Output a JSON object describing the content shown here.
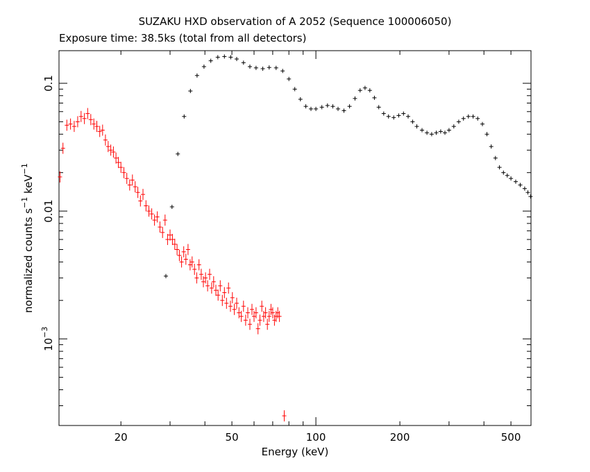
{
  "chart_data": {
    "type": "scatter",
    "title": "SUZAKU HXD observation of A 2052 (Sequence 100006050)",
    "subtitle": "Exposure time: 38.5ks (total from all detectors)",
    "xlabel": "Energy (keV)",
    "ylabel": {
      "main": "normalized counts s",
      "exp1": "−1",
      "mid": " keV",
      "exp2": "−1"
    },
    "x_scale": "log",
    "y_scale": "log",
    "xlim": [
      12,
      590
    ],
    "ylim": [
      0.00021,
      0.18
    ],
    "grid": false,
    "x_tick_labels": [
      {
        "value": 20,
        "label": "20"
      },
      {
        "value": 50,
        "label": "50"
      },
      {
        "value": 100,
        "label": "100"
      },
      {
        "value": 200,
        "label": "200"
      },
      {
        "value": 500,
        "label": "500"
      }
    ],
    "y_tick_labels": [
      {
        "value": 0.001,
        "label": "10",
        "exp": "−3"
      },
      {
        "value": 0.01,
        "label": "0.01"
      },
      {
        "value": 0.1,
        "label": "0.1"
      }
    ],
    "series": [
      {
        "color": "#ff0000",
        "points": [
          [
            12.1,
            0.0185
          ],
          [
            12.4,
            0.031
          ],
          [
            12.8,
            0.047
          ],
          [
            13.2,
            0.048
          ],
          [
            13.6,
            0.046
          ],
          [
            14.0,
            0.05
          ],
          [
            14.4,
            0.055
          ],
          [
            14.8,
            0.053
          ],
          [
            15.2,
            0.058
          ],
          [
            15.6,
            0.052
          ],
          [
            16.0,
            0.048
          ],
          [
            16.4,
            0.046
          ],
          [
            16.8,
            0.042
          ],
          [
            17.2,
            0.043
          ],
          [
            17.6,
            0.036
          ],
          [
            18.0,
            0.032
          ],
          [
            18.4,
            0.03
          ],
          [
            18.8,
            0.029
          ],
          [
            19.2,
            0.026
          ],
          [
            19.6,
            0.024
          ],
          [
            20.0,
            0.022
          ],
          [
            20.5,
            0.02
          ],
          [
            21.0,
            0.018
          ],
          [
            21.5,
            0.016
          ],
          [
            22.0,
            0.0175
          ],
          [
            22.5,
            0.0155
          ],
          [
            23.0,
            0.014
          ],
          [
            23.5,
            0.012
          ],
          [
            24.0,
            0.0135
          ],
          [
            24.6,
            0.011
          ],
          [
            25.2,
            0.01
          ],
          [
            25.8,
            0.0095
          ],
          [
            26.4,
            0.0085
          ],
          [
            27.0,
            0.009
          ],
          [
            27.6,
            0.0075
          ],
          [
            28.2,
            0.0068
          ],
          [
            28.8,
            0.0085
          ],
          [
            29.4,
            0.006
          ],
          [
            30.0,
            0.0065
          ],
          [
            30.6,
            0.006
          ],
          [
            31.2,
            0.0055
          ],
          [
            31.8,
            0.005
          ],
          [
            32.4,
            0.0045
          ],
          [
            33.0,
            0.004
          ],
          [
            33.6,
            0.0048
          ],
          [
            34.2,
            0.0042
          ],
          [
            34.8,
            0.005
          ],
          [
            35.4,
            0.0038
          ],
          [
            36.0,
            0.004
          ],
          [
            36.7,
            0.0035
          ],
          [
            37.4,
            0.003
          ],
          [
            38.1,
            0.0038
          ],
          [
            38.8,
            0.0032
          ],
          [
            39.5,
            0.0028
          ],
          [
            40.2,
            0.003
          ],
          [
            40.9,
            0.0026
          ],
          [
            41.6,
            0.0032
          ],
          [
            42.3,
            0.0025
          ],
          [
            43.0,
            0.0028
          ],
          [
            43.8,
            0.0024
          ],
          [
            44.6,
            0.0022
          ],
          [
            45.4,
            0.0026
          ],
          [
            46.2,
            0.002
          ],
          [
            47.0,
            0.0023
          ],
          [
            47.8,
            0.0019
          ],
          [
            48.6,
            0.0025
          ],
          [
            49.4,
            0.0018
          ],
          [
            50.2,
            0.0021
          ],
          [
            51.0,
            0.0017
          ],
          [
            52.0,
            0.0019
          ],
          [
            53.0,
            0.0016
          ],
          [
            54.0,
            0.0015
          ],
          [
            55.0,
            0.0018
          ],
          [
            56.0,
            0.0014
          ],
          [
            57.0,
            0.0016
          ],
          [
            58.0,
            0.0013
          ],
          [
            59.0,
            0.0017
          ],
          [
            60.0,
            0.0015
          ],
          [
            61.0,
            0.0016
          ],
          [
            62.0,
            0.0012
          ],
          [
            63.0,
            0.0014
          ],
          [
            64.0,
            0.0018
          ],
          [
            65.0,
            0.0015
          ],
          [
            66.0,
            0.0016
          ],
          [
            67.0,
            0.0013
          ],
          [
            68.0,
            0.0015
          ],
          [
            69.0,
            0.0017
          ],
          [
            70.0,
            0.0016
          ],
          [
            71.0,
            0.0014
          ],
          [
            72.0,
            0.0015
          ],
          [
            73.0,
            0.0016
          ],
          [
            74.0,
            0.0015
          ],
          [
            77.0,
            0.00025
          ]
        ]
      },
      {
        "color": "#000000",
        "points": [
          [
            29.0,
            0.0031
          ],
          [
            30.5,
            0.0108
          ],
          [
            32.0,
            0.028
          ],
          [
            33.7,
            0.055
          ],
          [
            35.5,
            0.087
          ],
          [
            37.5,
            0.115
          ],
          [
            39.7,
            0.135
          ],
          [
            42.0,
            0.15
          ],
          [
            44.5,
            0.16
          ],
          [
            47.0,
            0.162
          ],
          [
            49.5,
            0.16
          ],
          [
            52.0,
            0.155
          ],
          [
            55.0,
            0.145
          ],
          [
            58.0,
            0.135
          ],
          [
            61.0,
            0.132
          ],
          [
            64.5,
            0.13
          ],
          [
            68.0,
            0.133
          ],
          [
            72.0,
            0.132
          ],
          [
            76.0,
            0.125
          ],
          [
            80.0,
            0.108
          ],
          [
            84.0,
            0.09
          ],
          [
            88.0,
            0.075
          ],
          [
            92.0,
            0.066
          ],
          [
            96.0,
            0.063
          ],
          [
            100.0,
            0.063
          ],
          [
            105.0,
            0.065
          ],
          [
            110.0,
            0.067
          ],
          [
            115.0,
            0.066
          ],
          [
            120.0,
            0.063
          ],
          [
            126.0,
            0.061
          ],
          [
            132.0,
            0.066
          ],
          [
            138.0,
            0.076
          ],
          [
            144.0,
            0.088
          ],
          [
            150.0,
            0.092
          ],
          [
            156.0,
            0.088
          ],
          [
            162.0,
            0.077
          ],
          [
            168.0,
            0.065
          ],
          [
            175.0,
            0.058
          ],
          [
            182.0,
            0.055
          ],
          [
            190.0,
            0.054
          ],
          [
            198.0,
            0.056
          ],
          [
            206.0,
            0.058
          ],
          [
            214.0,
            0.055
          ],
          [
            222.0,
            0.05
          ],
          [
            230.0,
            0.046
          ],
          [
            240.0,
            0.043
          ],
          [
            250.0,
            0.041
          ],
          [
            260.0,
            0.04
          ],
          [
            270.0,
            0.041
          ],
          [
            280.0,
            0.042
          ],
          [
            290.0,
            0.041
          ],
          [
            300.0,
            0.043
          ],
          [
            312.0,
            0.046
          ],
          [
            325.0,
            0.05
          ],
          [
            338.0,
            0.053
          ],
          [
            352.0,
            0.055
          ],
          [
            366.0,
            0.055
          ],
          [
            380.0,
            0.053
          ],
          [
            395.0,
            0.048
          ],
          [
            410.0,
            0.04
          ],
          [
            425.0,
            0.032
          ],
          [
            440.0,
            0.026
          ],
          [
            455.0,
            0.022
          ],
          [
            470.0,
            0.02
          ],
          [
            485.0,
            0.019
          ],
          [
            500.0,
            0.018
          ],
          [
            520.0,
            0.017
          ],
          [
            540.0,
            0.016
          ],
          [
            560.0,
            0.015
          ],
          [
            575.0,
            0.014
          ],
          [
            588.0,
            0.013
          ]
        ]
      }
    ]
  }
}
